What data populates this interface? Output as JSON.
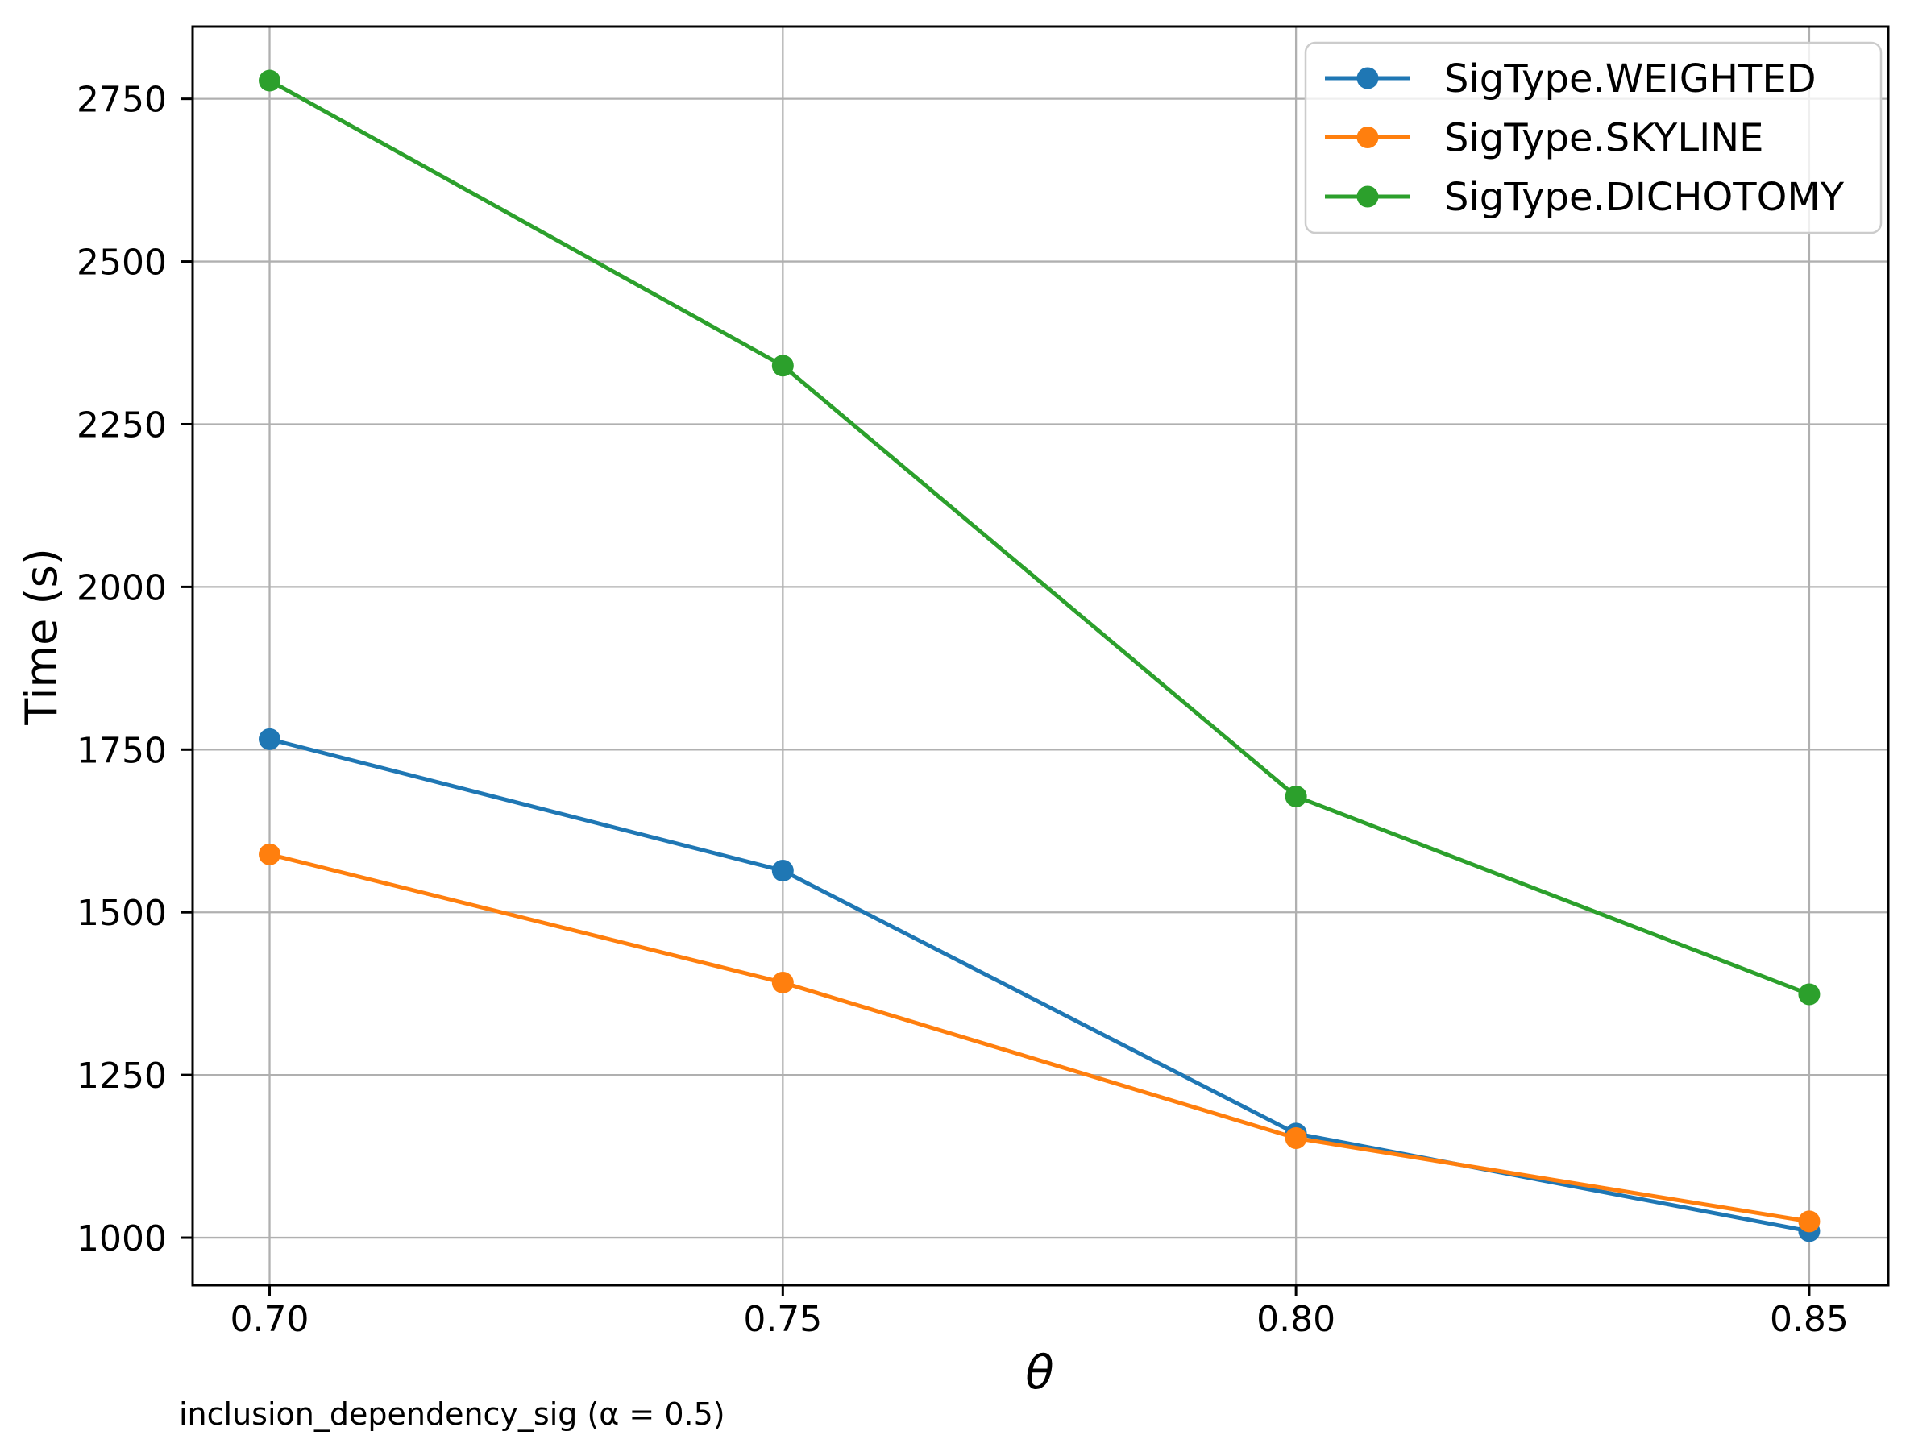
{
  "figure": {
    "background": "#ffffff",
    "caption": "inclusion_dependency_sig (α = 0.5)"
  },
  "chart_data": {
    "type": "line",
    "xlabel": "θ",
    "ylabel": "Time (s)",
    "x": [
      0.7,
      0.75,
      0.8,
      0.85
    ],
    "x_tick_labels": [
      "0.70",
      "0.75",
      "0.80",
      "0.85"
    ],
    "y_ticks": [
      1000,
      1250,
      1500,
      1750,
      2000,
      2250,
      2500,
      2750
    ],
    "y_tick_labels": [
      "1000",
      "1250",
      "1500",
      "1750",
      "2000",
      "2250",
      "2500",
      "2750"
    ],
    "xlim": [
      0.6925,
      0.8577
    ],
    "ylim": [
      927,
      2861
    ],
    "grid": true,
    "grid_color": "#b0b0b0",
    "spine_color": "#000000",
    "legend_position": "upper right",
    "legend_border_color": "#cccccc",
    "marker": "circle",
    "series": [
      {
        "name": "SigType.WEIGHTED",
        "color": "#1f77b4",
        "values": [
          1766,
          1564,
          1160,
          1010
        ]
      },
      {
        "name": "SigType.SKYLINE",
        "color": "#ff7f0e",
        "values": [
          1589,
          1392,
          1153,
          1025
        ]
      },
      {
        "name": "SigType.DICHOTOMY",
        "color": "#2ca02c",
        "values": [
          2778,
          2340,
          1678,
          1374
        ]
      }
    ]
  }
}
